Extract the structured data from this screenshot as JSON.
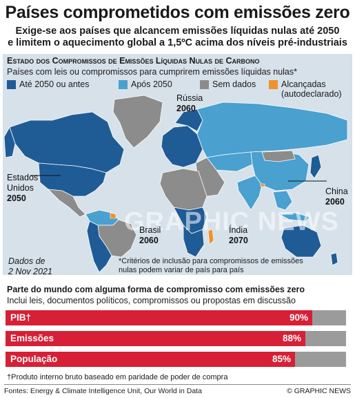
{
  "title": "Países comprometidos com emissões zero",
  "subtitle_line1": "Exige-se aos países que alcancem emissões líquidas nulas até 2050",
  "subtitle_line2": "e limitem o aquecimento global a 1,5ºC acima dos níveis pré-industriais",
  "map_panel": {
    "heading_prefix": "Estado dos Compromissos de Emissões Líquidas Nulas de Carbono",
    "subheading": "Países com leis ou compromissos para cumprirem emissões líquidas nulas*",
    "legend": [
      {
        "label": "Até 2050 ou antes",
        "color": "#1f5c96"
      },
      {
        "label": "Após 2050",
        "color": "#4aa0cf"
      },
      {
        "label": "Sem dados",
        "color": "#8c8c8c"
      },
      {
        "label": "Alcançadas",
        "label2": "(autodeclarado)",
        "color": "#f0922b"
      }
    ],
    "labels": {
      "russia_name": "Rússia",
      "russia_year": "2060",
      "usa_name1": "Estados",
      "usa_name2": "Unidos",
      "usa_year": "2050",
      "china_name": "China",
      "china_year": "2060",
      "brazil_name": "Brasil",
      "brazil_year": "2060",
      "india_name": "Índia",
      "india_year": "2070"
    },
    "date_line1": "Dados de",
    "date_line2": "2 Nov 2021",
    "criteria_note": "*Critérios de inclusão para compromissos de emissões nulas podem variar de país para país",
    "watermark": "GRAPHIC NEWS"
  },
  "share_panel": {
    "heading": "Parte do mundo com alguma forma de compromisso com emissões zero",
    "subheading": "Inclui leis, documentos políticos, compromissos ou propostas em discussão"
  },
  "chart_data": {
    "type": "bar",
    "categories": [
      "PIB†",
      "Emissões",
      "População"
    ],
    "values": [
      90,
      88,
      85
    ],
    "value_labels": [
      "90%",
      "88%",
      "85%"
    ],
    "xlim": [
      0,
      100
    ],
    "colors": {
      "committed": "#d71f35",
      "remainder": "#9b9b9b"
    }
  },
  "footnote": "†Produto interno bruto baseado em paridade de poder de compra",
  "sources": "Fontes: Energy & Climate Intelligence Unit, Our World in Data",
  "brand": "© GRAPHIC NEWS",
  "colors": {
    "ocean": "#d6e1ea",
    "dark_blue": "#1f5c96",
    "light_blue": "#4aa0cf",
    "grey": "#8c8c8c",
    "orange": "#f0922b",
    "red": "#d71f35"
  }
}
